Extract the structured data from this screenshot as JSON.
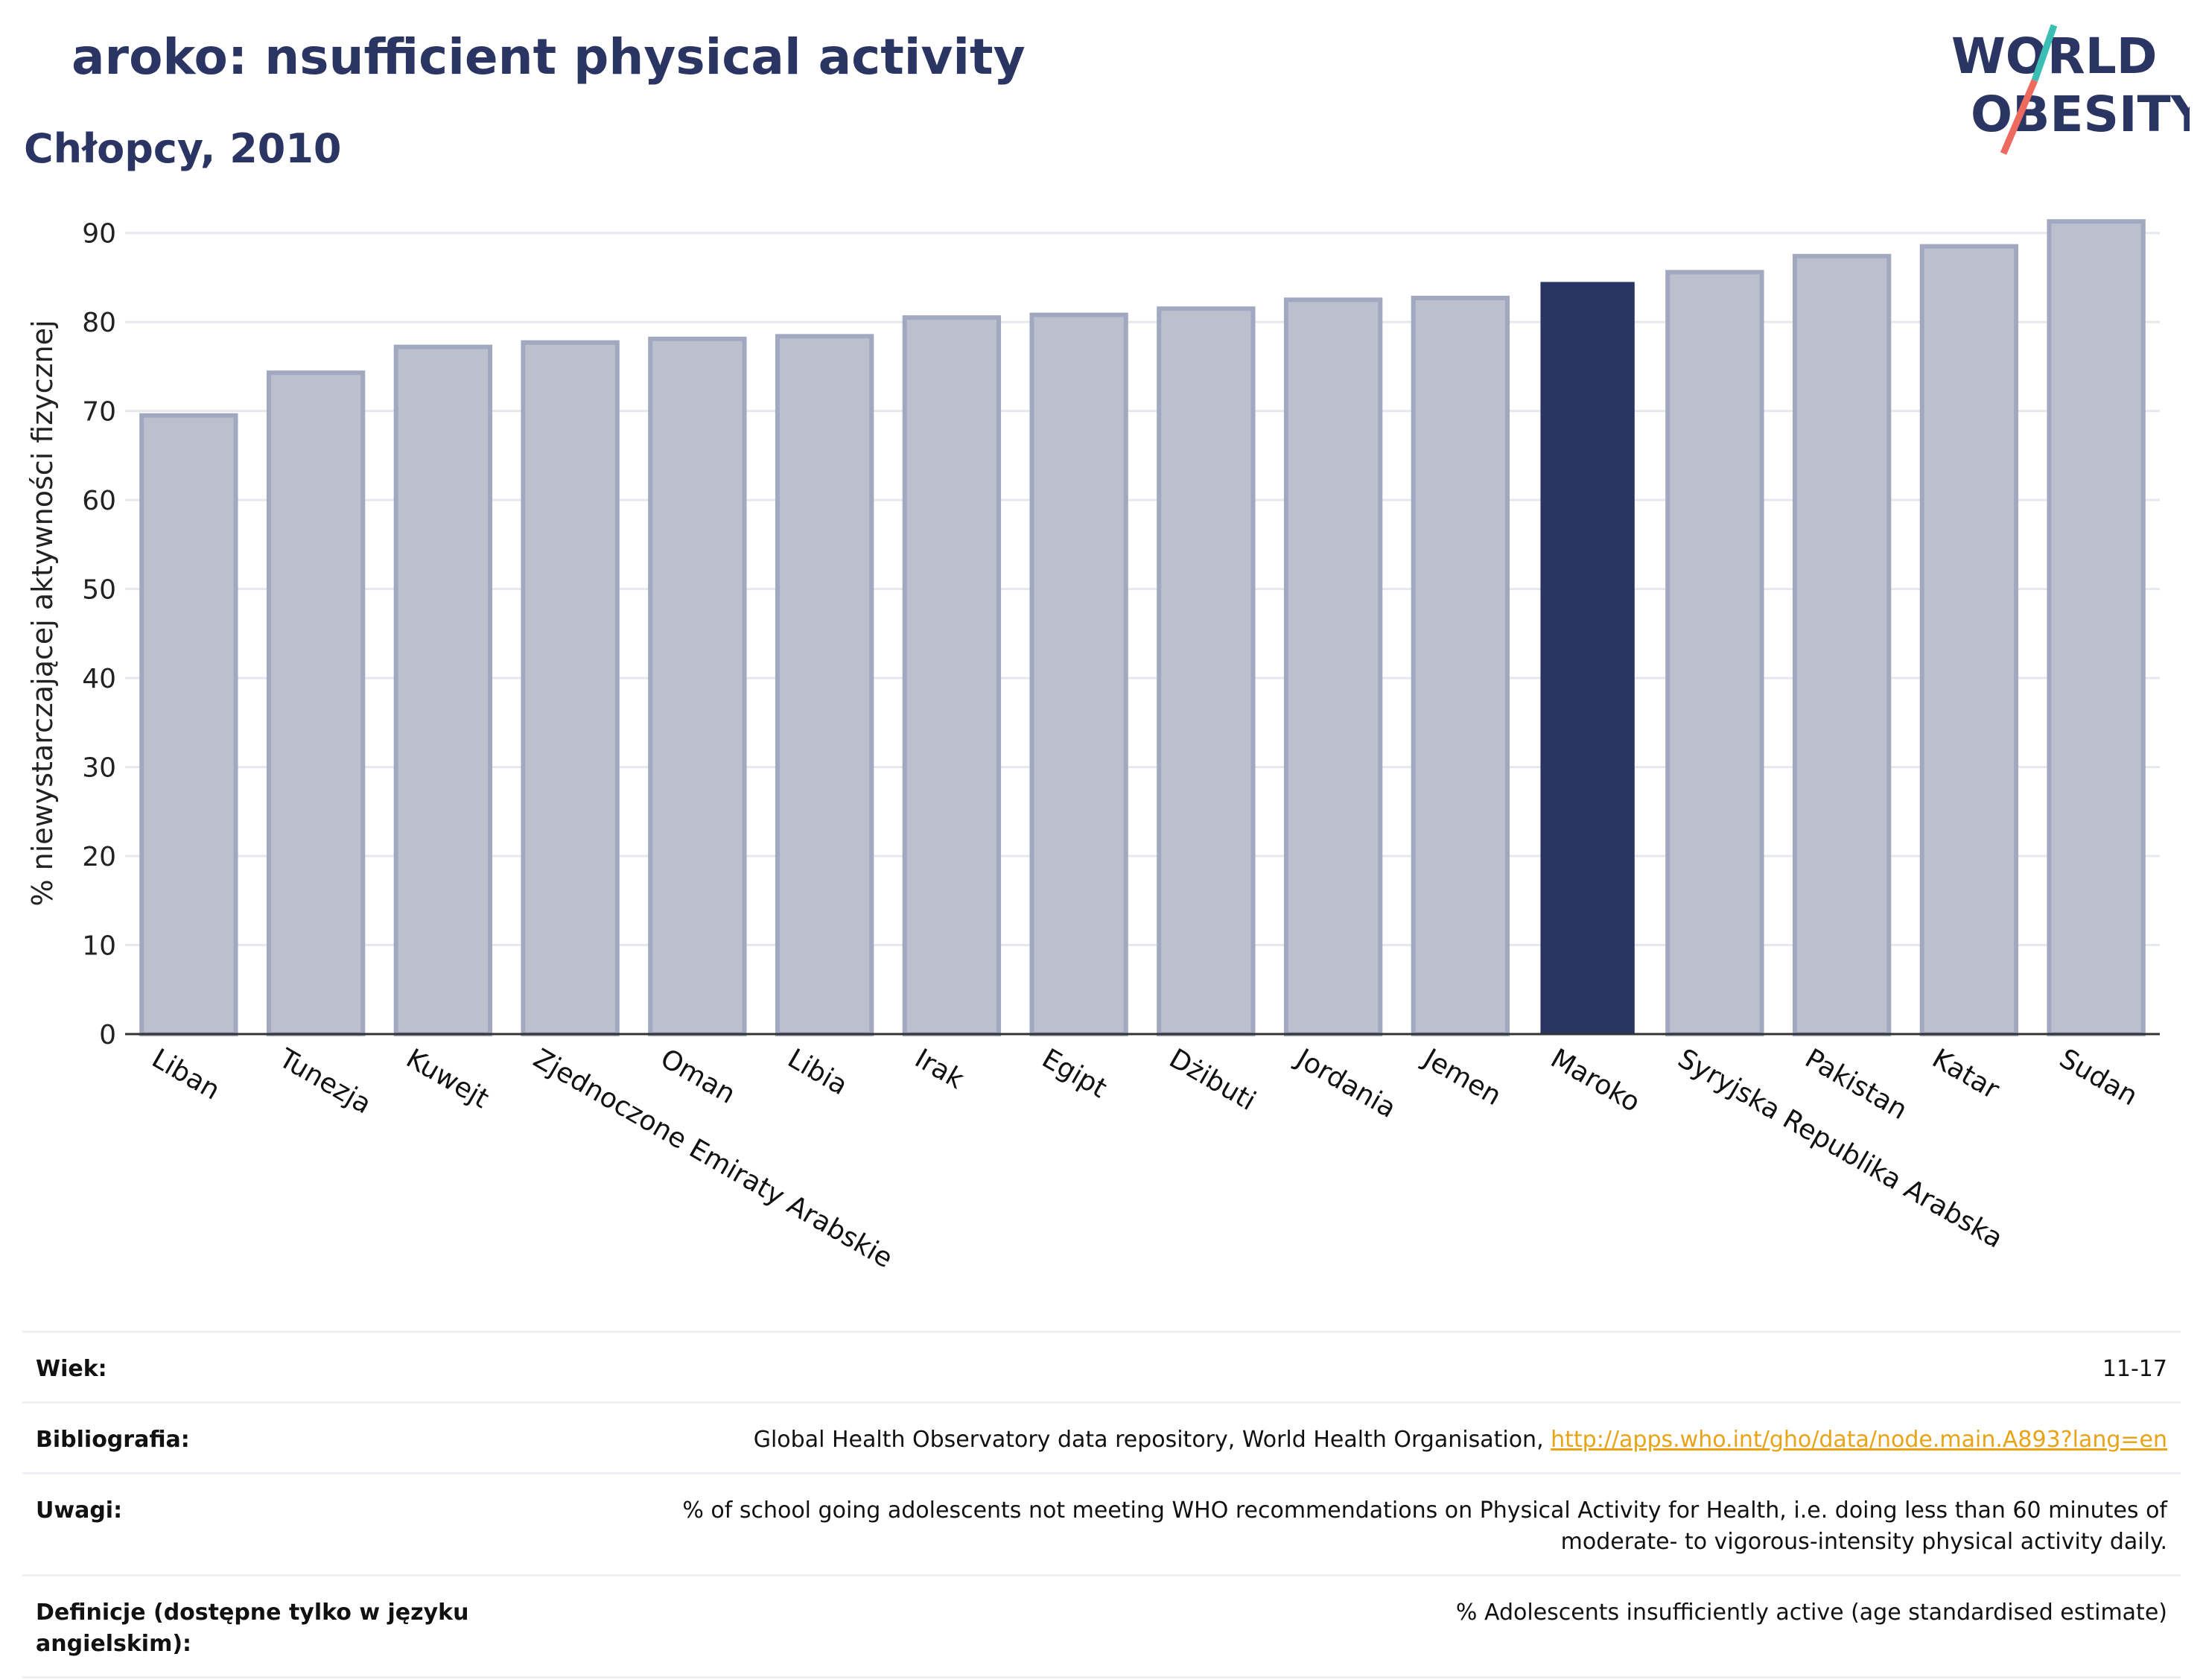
{
  "header": {
    "title": "aroko:  nsufficient physical activity",
    "subtitle": "Chłopcy, 2010",
    "logo_line1": "WORLD",
    "logo_line2": "OBESITY"
  },
  "chart_data": {
    "type": "bar",
    "title": "aroko:  nsufficient physical activity",
    "subtitle": "Chłopcy, 2010",
    "ylabel": "% niewystarczającej aktywności fizycznej",
    "xlabel": "",
    "ylim": [
      0,
      95
    ],
    "yticks": [
      0,
      10,
      20,
      30,
      40,
      50,
      60,
      70,
      80,
      90
    ],
    "grid": true,
    "categories": [
      "Liban",
      "Tunezja",
      "Kuwejt",
      "Zjednoczone Emiraty Arabskie",
      "Oman",
      "Libia",
      "Irak",
      "Egipt",
      "Dżibuti",
      "Jordania",
      "Jemen",
      "Maroko",
      "Syryjska Republika Arabska",
      "Pakistan",
      "Katar",
      "Sudan"
    ],
    "values": [
      69.5,
      74.3,
      77.2,
      77.7,
      78.1,
      78.4,
      80.5,
      80.8,
      81.5,
      82.5,
      82.7,
      84.5,
      85.6,
      87.4,
      88.5,
      91.3
    ],
    "highlight": "Maroko",
    "colors": {
      "bar": "#bcc0ce",
      "bar_border": "#a2a8c0",
      "highlight": "#2b3563",
      "grid": "#e6e8ee",
      "axis": "#333333"
    }
  },
  "info": {
    "age_label": "Wiek:",
    "age_value": "11-17",
    "bib_label": "Bibliografia:",
    "bib_text": "Global Health Observatory data repository, World Health Organisation, ",
    "bib_link": "http://apps.who.int/gho/data/node.main.A893?lang=en",
    "notes_label": "Uwagi:",
    "notes_line1": "% of school going adolescents not meeting WHO recommendations on Physical Activity for Health, i.e. doing less than 60 minutes of",
    "notes_line2": "moderate- to vigorous-intensity physical activity daily.",
    "def_label_line1": "Definicje (dostępne tylko w języku",
    "def_label_line2": "angielskim):",
    "def_value": "% Adolescents insufficiently active (age standardised estimate)"
  }
}
